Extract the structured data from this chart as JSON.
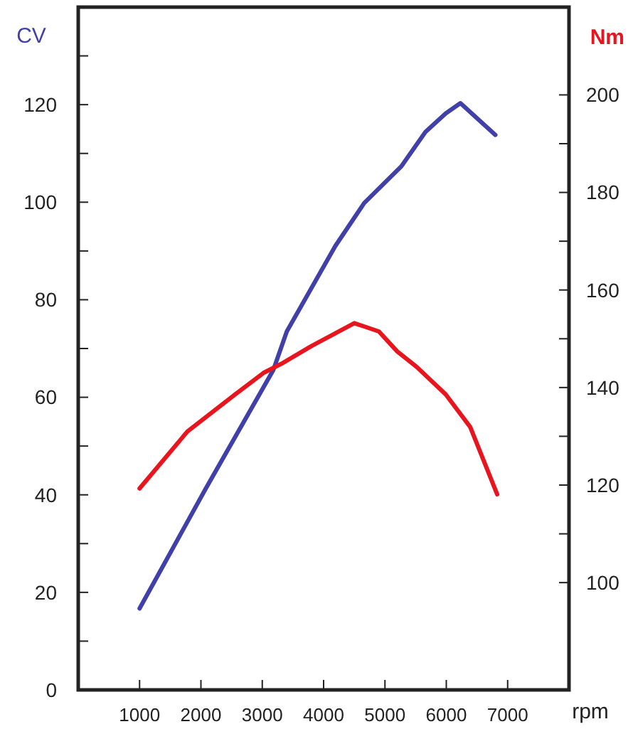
{
  "chart_data": {
    "type": "line",
    "xlabel": "rpm",
    "ylabel": "CV",
    "y2label": "Nm",
    "xlim": [
      0,
      8000
    ],
    "xticks": [
      1000,
      2000,
      3000,
      4000,
      5000,
      6000,
      7000
    ],
    "ylim": [
      0,
      140
    ],
    "yticks": [
      0,
      {
        "value": 10,
        "label": null
      },
      20,
      {
        "value": 30,
        "label": null
      },
      40,
      {
        "value": 50,
        "label": null
      },
      60,
      {
        "value": 70,
        "label": null
      },
      80,
      {
        "value": 90,
        "label": null
      },
      100,
      {
        "value": 110,
        "label": null
      },
      120,
      {
        "value": 130,
        "label": null
      }
    ],
    "y2lim": [
      78,
      218
    ],
    "y2ticks": [
      100,
      {
        "value": 110,
        "label": null
      },
      120,
      {
        "value": 130,
        "label": null
      },
      140,
      {
        "value": 150,
        "label": null
      },
      160,
      {
        "value": 170,
        "label": null
      },
      180,
      {
        "value": 190,
        "label": null
      },
      200
    ],
    "grid": false,
    "marker": "none",
    "line_style": "solid",
    "series": [
      {
        "color": "#4040a8",
        "x": [
          1000,
          2080,
          3180,
          3400,
          4190,
          4660,
          5270,
          5660,
          5990,
          6230,
          6800
        ],
        "values": [
          16.7,
          41.3,
          65.6,
          73.5,
          91,
          99.8,
          107.4,
          114.4,
          118.2,
          120.3,
          113.8
        ]
      },
      {
        "color": "#e8141e",
        "axis": "y2",
        "x": [
          1000,
          1780,
          2560,
          3020,
          3330,
          3800,
          4500,
          4900,
          5200,
          5520,
          5990,
          6390,
          6830
        ],
        "values": [
          119.3,
          131,
          138.6,
          143,
          145,
          148.5,
          153.2,
          151.5,
          147.4,
          144.2,
          138.6,
          131.9,
          118.1
        ]
      }
    ]
  }
}
